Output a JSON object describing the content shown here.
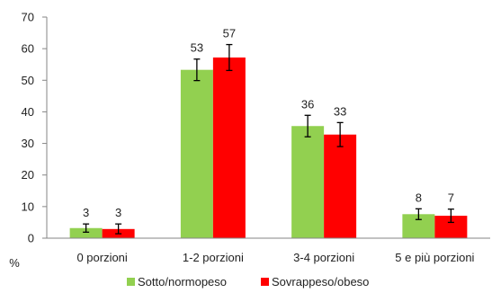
{
  "chart_data": {
    "type": "bar",
    "ylabel": "%",
    "ylim": [
      0,
      70
    ],
    "yticks": [
      0,
      10,
      20,
      30,
      40,
      50,
      60,
      70
    ],
    "categories": [
      "0 porzioni",
      "1-2 porzioni",
      "3-4 porzioni",
      "5 e più porzioni"
    ],
    "series": [
      {
        "name": "Sotto/normopeso",
        "color": "#92d050",
        "values": [
          3,
          53,
          36,
          8
        ],
        "plotted_values": [
          3.2,
          53.3,
          35.5,
          7.6
        ],
        "error_low": [
          1.9,
          49.9,
          32.1,
          5.9
        ],
        "error_high": [
          4.5,
          56.7,
          38.9,
          9.3
        ]
      },
      {
        "name": "Sovrappeso/obeso",
        "color": "#ff0000",
        "values": [
          3,
          57,
          33,
          7
        ],
        "plotted_values": [
          2.9,
          57.2,
          32.8,
          7.1
        ],
        "error_low": [
          1.4,
          53.1,
          29.0,
          5.0
        ],
        "error_high": [
          4.5,
          61.3,
          36.6,
          9.2
        ]
      }
    ],
    "legend_position": "bottom",
    "grid": false
  }
}
